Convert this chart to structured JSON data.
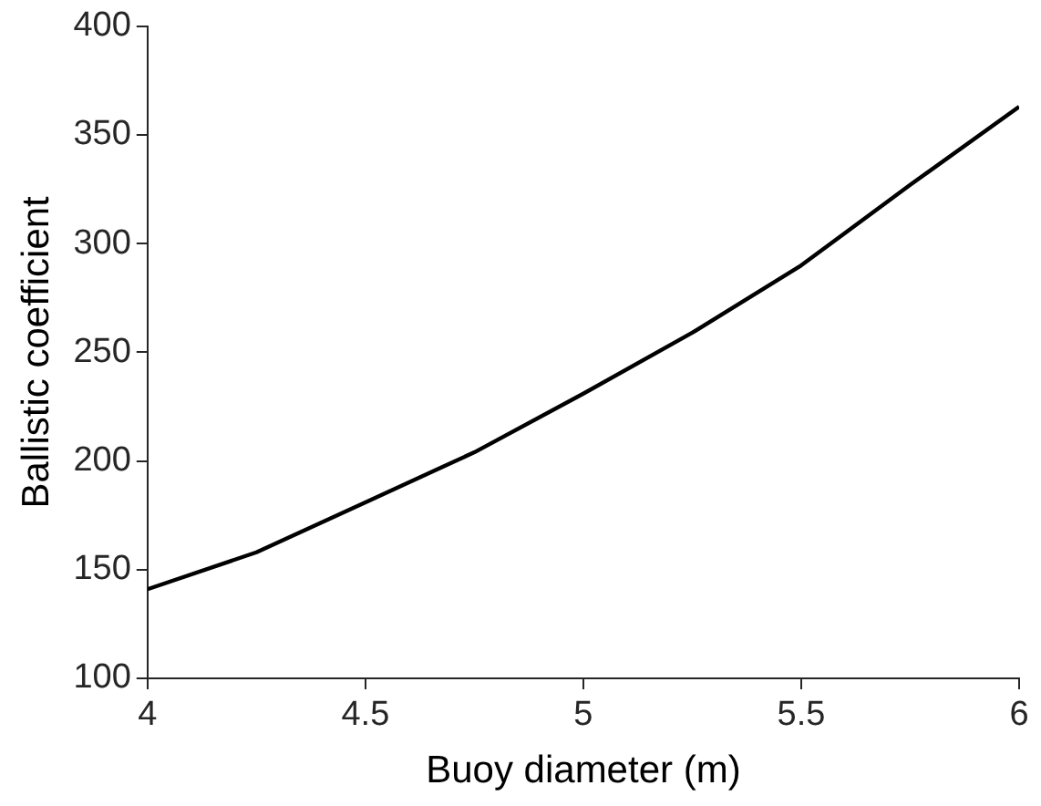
{
  "chart_data": {
    "type": "line",
    "xlabel": "Buoy diameter (m)",
    "ylabel": "Ballistic coefficient",
    "x": [
      4,
      4.25,
      4.5,
      4.75,
      5,
      5.25,
      5.5,
      5.75,
      6
    ],
    "series": [
      {
        "color": "#000000",
        "values": [
          141,
          158,
          181,
          204,
          231,
          259,
          290,
          327,
          363
        ]
      }
    ],
    "xlim": [
      4,
      6
    ],
    "xticks": [
      4,
      4.5,
      5,
      5.5,
      6
    ],
    "ylim": [
      100,
      400
    ],
    "yticks": [
      100,
      150,
      200,
      250,
      300,
      350,
      400
    ],
    "grid": false,
    "legend": false,
    "marker": "none",
    "line_style": "solid"
  }
}
